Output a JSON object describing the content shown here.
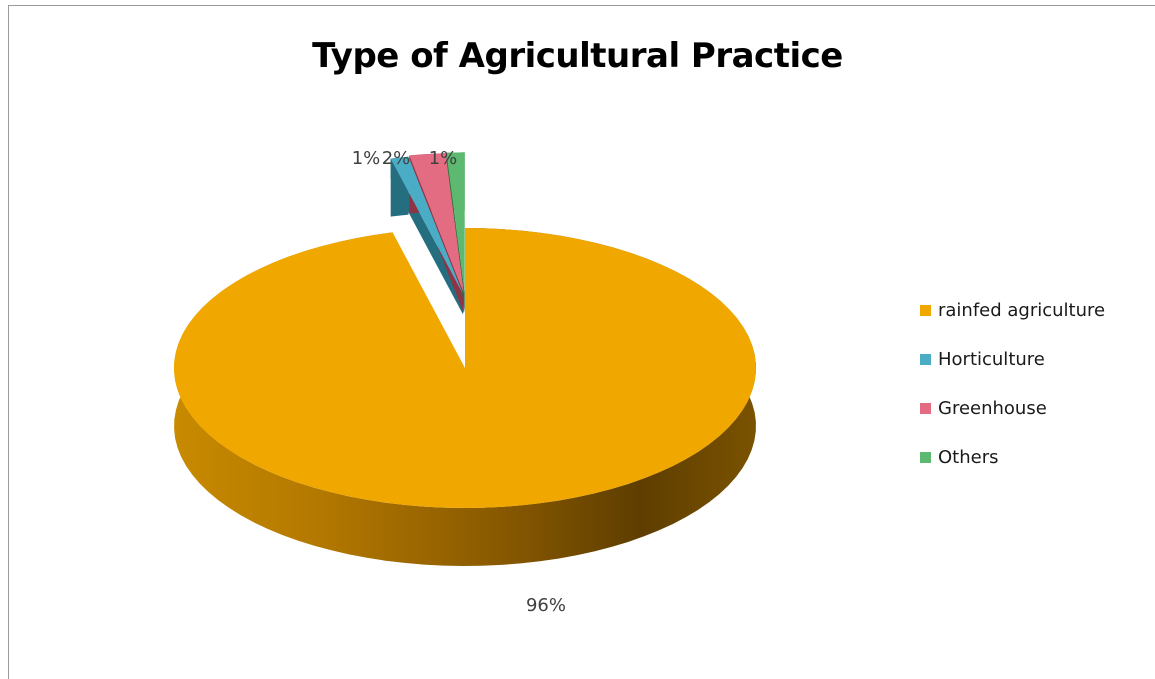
{
  "chart_data": {
    "type": "pie",
    "title": "Type of Agricultural Practice",
    "categories": [
      "rainfed agriculture",
      "Horticulture",
      "Greenhouse",
      "Others"
    ],
    "values": [
      96,
      1,
      2,
      1
    ],
    "data_labels": [
      "96%",
      "1%",
      "2%",
      "1%"
    ],
    "colors": [
      "#F0A800",
      "#4BACC6",
      "#E36C82",
      "#5DB870"
    ],
    "three_d": true,
    "exploded": [
      "Horticulture",
      "Greenhouse",
      "Others"
    ],
    "legend": "right"
  }
}
